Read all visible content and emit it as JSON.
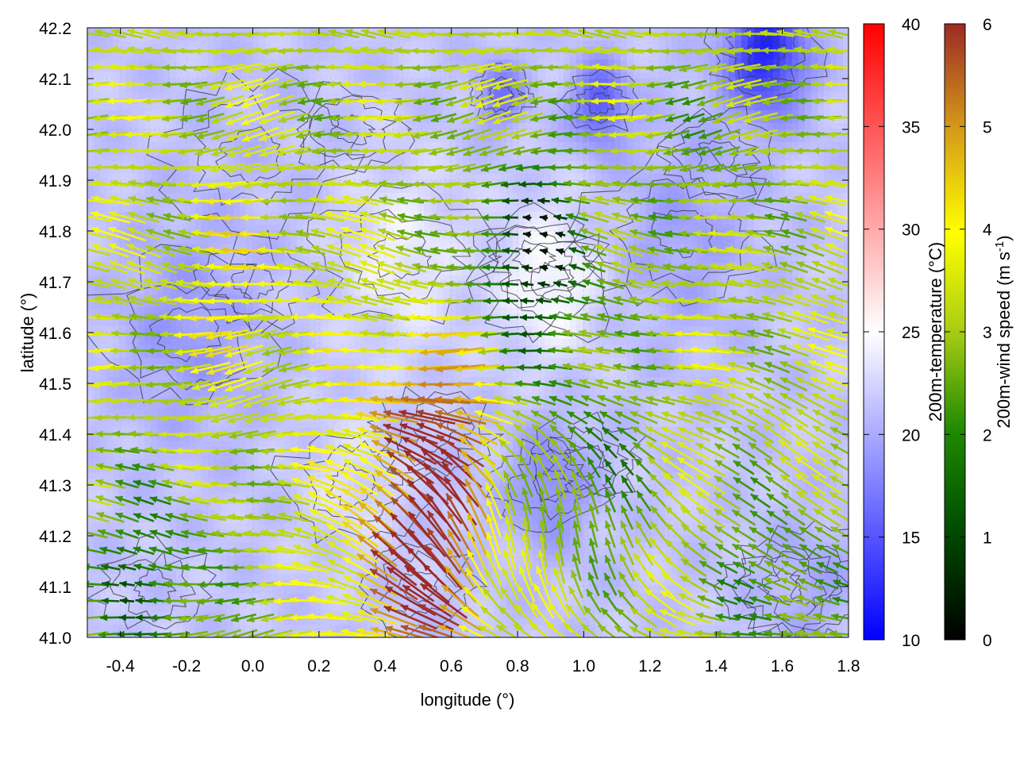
{
  "chart_data": {
    "type": "heatmap",
    "title": "",
    "xlabel": "longitude (°)",
    "ylabel": "latitude (°)",
    "xlim": [
      -0.5,
      1.8
    ],
    "ylim": [
      41.0,
      42.2
    ],
    "x_ticks": [
      "-0.4",
      "-0.2",
      "0.0",
      "0.2",
      "0.4",
      "0.6",
      "0.8",
      "1.0",
      "1.2",
      "1.4",
      "1.6",
      "1.8"
    ],
    "y_ticks": [
      "41.0",
      "41.1",
      "41.2",
      "41.3",
      "41.4",
      "41.5",
      "41.6",
      "41.7",
      "41.8",
      "41.9",
      "42.0",
      "42.1",
      "42.2"
    ],
    "grid": true,
    "overlays": [
      "filled temperature field",
      "contour lines",
      "wind vectors"
    ],
    "colorbars": [
      {
        "label": "200m-temperature (°C)",
        "range": [
          10,
          40
        ],
        "ticks": [
          "10",
          "15",
          "20",
          "25",
          "30",
          "35",
          "40"
        ],
        "colors": [
          "#0000ff",
          "#ffffff",
          "#ff0000"
        ]
      },
      {
        "label_main": "200m-wind speed (m s",
        "label_sup": "-1",
        "label_end": ")",
        "range": [
          0,
          6
        ],
        "ticks": [
          "0",
          "1",
          "2",
          "3",
          "4",
          "5",
          "6"
        ],
        "colors": [
          "#000000",
          "#006400",
          "#8fbc1f",
          "#ffff00",
          "#daa520",
          "#b8860b",
          "#a0302a"
        ]
      }
    ],
    "field_blobs": [
      {
        "lon": 1.55,
        "lat": 42.15,
        "temp": 12,
        "r": 0.12
      },
      {
        "lon": 1.05,
        "lat": 42.05,
        "temp": 15,
        "r": 0.08
      },
      {
        "lon": 0.75,
        "lat": 42.07,
        "temp": 17,
        "r": 0.07
      },
      {
        "lon": -0.2,
        "lat": 41.6,
        "temp": 19,
        "r": 0.2
      },
      {
        "lon": 1.3,
        "lat": 41.8,
        "temp": 19.5,
        "r": 0.2
      },
      {
        "lon": 0.45,
        "lat": 41.75,
        "temp": 24,
        "r": 0.18
      },
      {
        "lon": 0.9,
        "lat": 41.7,
        "temp": 25,
        "r": 0.15
      },
      {
        "lon": 0.9,
        "lat": 41.3,
        "temp": 18,
        "r": 0.12
      },
      {
        "lon": 0.3,
        "lat": 41.3,
        "temp": 23,
        "r": 0.15
      },
      {
        "lon": 1.7,
        "lat": 41.1,
        "temp": 20,
        "r": 0.15
      },
      {
        "lon": 0.0,
        "lat": 41.95,
        "temp": 21,
        "r": 0.2
      }
    ],
    "wind_centers": [
      {
        "lon": 0.85,
        "lat": 41.75,
        "speed": 0.6
      },
      {
        "lon": 1.0,
        "lat": 41.35,
        "speed": 2.0
      },
      {
        "lon": 0.55,
        "lat": 41.4,
        "speed": 5.8
      },
      {
        "lon": 0.5,
        "lat": 41.1,
        "speed": 5.8
      },
      {
        "lon": -0.3,
        "lat": 41.1,
        "speed": 1.5
      },
      {
        "lon": 0.0,
        "lat": 41.7,
        "speed": 4.0
      },
      {
        "lon": 1.6,
        "lat": 41.1,
        "speed": 2.0
      },
      {
        "lon": 1.4,
        "lat": 41.95,
        "speed": 2.5
      },
      {
        "lon": 0.3,
        "lat": 42.0,
        "speed": 3.0
      }
    ]
  }
}
